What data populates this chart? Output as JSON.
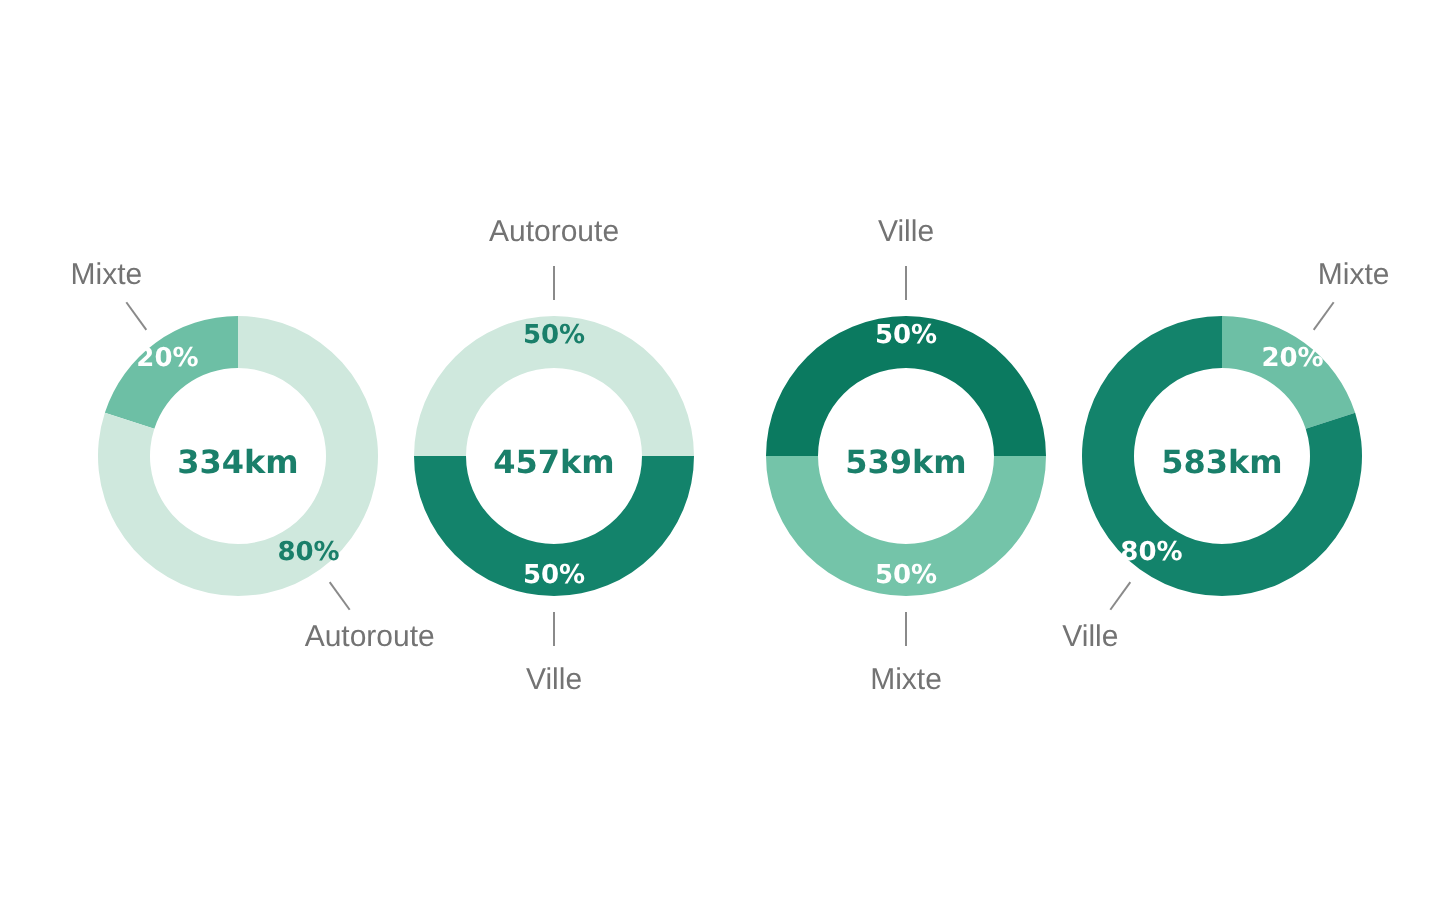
{
  "chart_data": [
    {
      "type": "donut",
      "title": "334km",
      "categories": [
        "Mixte",
        "Autoroute"
      ],
      "values": [
        20,
        80
      ],
      "value_labels": [
        "20%",
        "80%"
      ],
      "colors": [
        "#6dbfa5",
        "#cfe8dd"
      ]
    },
    {
      "type": "donut",
      "title": "457km",
      "categories": [
        "Autoroute",
        "Ville"
      ],
      "values": [
        50,
        50
      ],
      "value_labels": [
        "50%",
        "50%"
      ],
      "colors": [
        "#cfe8dd",
        "#13836b"
      ]
    },
    {
      "type": "donut",
      "title": "539km",
      "categories": [
        "Ville",
        "Mixte"
      ],
      "values": [
        50,
        50
      ],
      "value_labels": [
        "50%",
        "50%"
      ],
      "colors": [
        "#0b7a60",
        "#74c4a9"
      ]
    },
    {
      "type": "donut",
      "title": "583km",
      "categories": [
        "Mixte",
        "Ville"
      ],
      "values": [
        20,
        80
      ],
      "value_labels": [
        "20%",
        "80%"
      ],
      "colors": [
        "#6dbfa5",
        "#13836b"
      ]
    }
  ]
}
